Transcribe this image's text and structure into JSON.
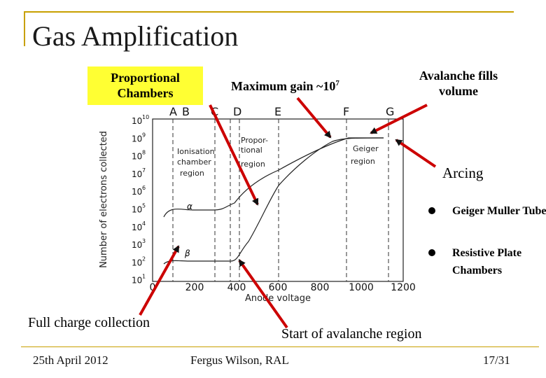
{
  "slide": {
    "title": "Gas Amplification",
    "footer_date": "25th April 2012",
    "footer_author": "Fergus Wilson, RAL",
    "footer_page": "17/31"
  },
  "callouts": {
    "proportional": "Proportional Chambers",
    "max_gain_text": "Maximum gain ~10",
    "max_gain_exp": "7",
    "avalanche_fills": "Avalanche fills volume",
    "arcing": "Arcing",
    "full_charge": "Full charge collection",
    "start_avalanche": "Start of avalanche region"
  },
  "bullets": [
    {
      "text": "Geiger Muller Tube"
    },
    {
      "text": "Resistive Plate Chambers"
    }
  ],
  "colors": {
    "accent": "#c8a000",
    "highlight": "#ffff33",
    "arrow": "#cc0000"
  },
  "diagram": {
    "y_axis_label": "Number of electrons collected",
    "x_axis_label": "Anode voltage",
    "x_ticks": [
      "0",
      "200",
      "400",
      "600",
      "800",
      "1000",
      "1200"
    ],
    "y_ticks": [
      {
        "base": "10",
        "exp": "10"
      },
      {
        "base": "10",
        "exp": "9"
      },
      {
        "base": "10",
        "exp": "8"
      },
      {
        "base": "10",
        "exp": "7"
      },
      {
        "base": "10",
        "exp": "6"
      },
      {
        "base": "10",
        "exp": "5"
      },
      {
        "base": "10",
        "exp": "4"
      },
      {
        "base": "10",
        "exp": "3"
      },
      {
        "base": "10",
        "exp": "2"
      },
      {
        "base": "10",
        "exp": "1"
      }
    ],
    "region_letters": [
      "A",
      "B",
      "C",
      "D",
      "E",
      "F",
      "G"
    ],
    "region_labels": {
      "ionisation": [
        "Ionisation",
        "chamber",
        "region"
      ],
      "proportional": [
        "Propor-",
        "tional",
        "region"
      ],
      "geiger": [
        "Geiger",
        "region"
      ]
    },
    "curve_labels": {
      "alpha": "α",
      "beta": "β"
    }
  }
}
